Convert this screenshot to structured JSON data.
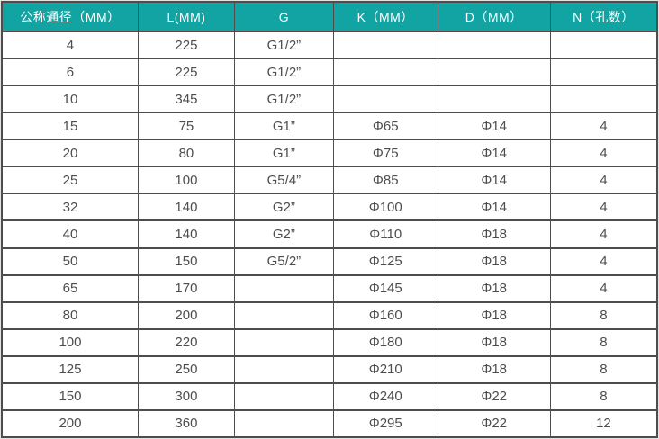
{
  "colors": {
    "header_bg": "#12a3a3",
    "header_text": "#ffffff",
    "cell_text": "#4d4d4d",
    "border": "#4d4d4d"
  },
  "table": {
    "columns": [
      "公称通径（MM）",
      "L(MM)",
      "G",
      "K（MM）",
      "D（MM）",
      "N（孔数）"
    ],
    "rows": [
      [
        "4",
        "225",
        "G1/2”",
        "",
        "",
        ""
      ],
      [
        "6",
        "225",
        "G1/2”",
        "",
        "",
        ""
      ],
      [
        "10",
        "345",
        "G1/2”",
        "",
        "",
        ""
      ],
      [
        "15",
        "75",
        "G1”",
        "Φ65",
        "Φ14",
        "4"
      ],
      [
        "20",
        "80",
        "G1”",
        "Φ75",
        "Φ14",
        "4"
      ],
      [
        "25",
        "100",
        "G5/4”",
        "Φ85",
        "Φ14",
        "4"
      ],
      [
        "32",
        "140",
        "G2”",
        "Φ100",
        "Φ14",
        "4"
      ],
      [
        "40",
        "140",
        "G2”",
        "Φ110",
        "Φ18",
        "4"
      ],
      [
        "50",
        "150",
        "G5/2”",
        "Φ125",
        "Φ18",
        "4"
      ],
      [
        "65",
        "170",
        "",
        "Φ145",
        "Φ18",
        "4"
      ],
      [
        "80",
        "200",
        "",
        "Φ160",
        "Φ18",
        "8"
      ],
      [
        "100",
        "220",
        "",
        "Φ180",
        "Φ18",
        "8"
      ],
      [
        "125",
        "250",
        "",
        "Φ210",
        "Φ18",
        "8"
      ],
      [
        "150",
        "300",
        "",
        "Φ240",
        "Φ22",
        "8"
      ],
      [
        "200",
        "360",
        "",
        "Φ295",
        "Φ22",
        "12"
      ]
    ]
  }
}
